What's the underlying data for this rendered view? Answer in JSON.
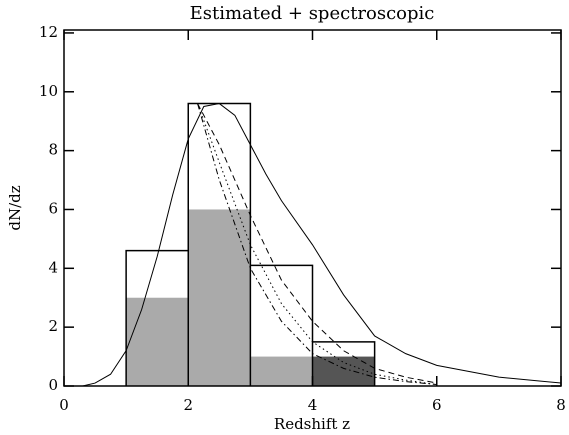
{
  "chart_data": {
    "type": "histogram",
    "title": "Estimated + spectroscopic",
    "xlabel": "Redshift z",
    "ylabel": "dN/dz",
    "xlim": [
      0,
      8
    ],
    "xticks": [
      0,
      2,
      4,
      6,
      8
    ],
    "ylim": [
      0,
      12.1
    ],
    "yticks": [
      0,
      2,
      4,
      6,
      8,
      10,
      12
    ],
    "bins": [
      1,
      2,
      3,
      4,
      5
    ],
    "series": [
      {
        "color": "#aaaaaa",
        "values": [
          3.0,
          6.0,
          1.0,
          0
        ]
      },
      {
        "color": "#555555",
        "values": [
          0,
          0,
          0,
          1.0
        ]
      }
    ],
    "outline": {
      "color": "#000000",
      "values": [
        4.6,
        9.6,
        4.1,
        1.5
      ]
    },
    "curves": [
      {
        "style": "solid",
        "x": [
          0,
          0.3,
          0.5,
          0.75,
          1,
          1.25,
          1.5,
          1.75,
          2,
          2.25,
          2.5,
          2.75,
          3,
          3.25,
          3.5,
          4,
          4.5,
          5,
          5.5,
          6,
          7,
          8
        ],
        "values": [
          0,
          0,
          0.1,
          0.4,
          1.2,
          2.6,
          4.4,
          6.5,
          8.4,
          9.5,
          9.6,
          9.2,
          8.2,
          7.2,
          6.3,
          4.8,
          3.1,
          1.7,
          1.1,
          0.7,
          0.3,
          0.1
        ]
      },
      {
        "style": "dashed",
        "x": [
          2.15,
          2.5,
          3,
          3.5,
          4,
          4.5,
          5,
          5.5,
          6
        ],
        "values": [
          9.6,
          8.2,
          5.8,
          3.6,
          2.2,
          1.2,
          0.6,
          0.3,
          0.1
        ]
      },
      {
        "style": "dotted",
        "x": [
          2.15,
          2.5,
          3,
          3.5,
          4,
          4.5,
          5,
          5.5,
          6
        ],
        "values": [
          9.6,
          7.6,
          4.8,
          2.8,
          1.5,
          0.8,
          0.4,
          0.2,
          0.05
        ]
      },
      {
        "style": "dashdot",
        "x": [
          2.15,
          2.5,
          3,
          3.5,
          4,
          4.5,
          5,
          5.5,
          6
        ],
        "values": [
          9.6,
          7.0,
          4.0,
          2.2,
          1.1,
          0.6,
          0.3,
          0.15,
          0.05
        ]
      }
    ]
  }
}
